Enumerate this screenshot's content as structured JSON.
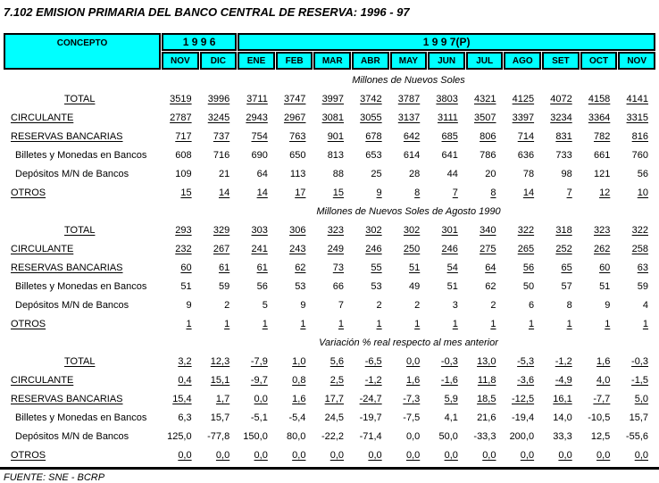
{
  "page": {
    "title": "7.102  EMISION PRIMARIA DEL BANCO CENTRAL DE RESERVA: 1996 - 97",
    "footer": "FUENTE: SNE - BCRP"
  },
  "colors": {
    "header_bg": "#00ffff",
    "border": "#000000",
    "text": "#000000"
  },
  "table": {
    "concept_header": "CONCEPTO",
    "year_groups": [
      {
        "label": "1 9 9 6",
        "span": 2
      },
      {
        "label": "1 9 9 7(P)",
        "span": 11
      }
    ],
    "months": [
      "NOV",
      "DIC",
      "ENE",
      "FEB",
      "MAR",
      "ABR",
      "MAY",
      "JUN",
      "JUL",
      "AGO",
      "SET",
      "OCT",
      "NOV"
    ]
  },
  "sections": [
    {
      "heading": "Millones de Nuevos Soles",
      "rows": [
        {
          "label": "TOTAL",
          "total": true,
          "underline": true,
          "values": [
            "3519",
            "3996",
            "3711",
            "3747",
            "3997",
            "3742",
            "3787",
            "3803",
            "4321",
            "4125",
            "4072",
            "4158",
            "4141"
          ]
        },
        {
          "label": "CIRCULANTE",
          "underline": true,
          "values": [
            "2787",
            "3245",
            "2943",
            "2967",
            "3081",
            "3055",
            "3137",
            "3111",
            "3507",
            "3397",
            "3234",
            "3364",
            "3315"
          ]
        },
        {
          "label": "RESERVAS BANCARIAS",
          "underline": true,
          "values": [
            "717",
            "737",
            "754",
            "763",
            "901",
            "678",
            "642",
            "685",
            "806",
            "714",
            "831",
            "782",
            "816"
          ]
        },
        {
          "label": "Billetes y Monedas en Bancos",
          "indent": true,
          "values": [
            "608",
            "716",
            "690",
            "650",
            "813",
            "653",
            "614",
            "641",
            "786",
            "636",
            "733",
            "661",
            "760"
          ]
        },
        {
          "label": "Depósitos M/N de Bancos",
          "indent": true,
          "values": [
            "109",
            "21",
            "64",
            "113",
            "88",
            "25",
            "28",
            "44",
            "20",
            "78",
            "98",
            "121",
            "56"
          ]
        },
        {
          "label": "OTROS",
          "underline": true,
          "values": [
            "15",
            "14",
            "14",
            "17",
            "15",
            "9",
            "8",
            "7",
            "8",
            "14",
            "7",
            "12",
            "10"
          ]
        }
      ]
    },
    {
      "heading": "Millones de Nuevos Soles de Agosto 1990",
      "rows": [
        {
          "label": "TOTAL",
          "total": true,
          "underline": true,
          "values": [
            "293",
            "329",
            "303",
            "306",
            "323",
            "302",
            "302",
            "301",
            "340",
            "322",
            "318",
            "323",
            "322"
          ]
        },
        {
          "label": "CIRCULANTE",
          "underline": true,
          "values": [
            "232",
            "267",
            "241",
            "243",
            "249",
            "246",
            "250",
            "246",
            "275",
            "265",
            "252",
            "262",
            "258"
          ]
        },
        {
          "label": "RESERVAS BANCARIAS",
          "underline": true,
          "values": [
            "60",
            "61",
            "61",
            "62",
            "73",
            "55",
            "51",
            "54",
            "64",
            "56",
            "65",
            "60",
            "63"
          ]
        },
        {
          "label": "Billetes y Monedas en Bancos",
          "indent": true,
          "values": [
            "51",
            "59",
            "56",
            "53",
            "66",
            "53",
            "49",
            "51",
            "62",
            "50",
            "57",
            "51",
            "59"
          ]
        },
        {
          "label": "Depósitos M/N de Bancos",
          "indent": true,
          "values": [
            "9",
            "2",
            "5",
            "9",
            "7",
            "2",
            "2",
            "3",
            "2",
            "6",
            "8",
            "9",
            "4"
          ]
        },
        {
          "label": "OTROS",
          "underline": true,
          "values": [
            "1",
            "1",
            "1",
            "1",
            "1",
            "1",
            "1",
            "1",
            "1",
            "1",
            "1",
            "1",
            "1"
          ]
        }
      ]
    },
    {
      "heading": "Variación % real respecto al mes anterior",
      "rows": [
        {
          "label": "TOTAL",
          "total": true,
          "underline": true,
          "values": [
            "3,2",
            "12,3",
            "-7,9",
            "1,0",
            "5,6",
            "-6,5",
            "0,0",
            "-0,3",
            "13,0",
            "-5,3",
            "-1,2",
            "1,6",
            "-0,3"
          ]
        },
        {
          "label": "CIRCULANTE",
          "underline": true,
          "values": [
            "0,4",
            "15,1",
            "-9,7",
            "0,8",
            "2,5",
            "-1,2",
            "1,6",
            "-1,6",
            "11,8",
            "-3,6",
            "-4,9",
            "4,0",
            "-1,5"
          ]
        },
        {
          "label": "RESERVAS BANCARIAS",
          "underline": true,
          "values": [
            "15,4",
            "1,7",
            "0,0",
            "1,6",
            "17,7",
            "-24,7",
            "-7,3",
            "5,9",
            "18,5",
            "-12,5",
            "16,1",
            "-7,7",
            "5,0"
          ]
        },
        {
          "label": "Billetes y Monedas en Bancos",
          "indent": true,
          "values": [
            "6,3",
            "15,7",
            "-5,1",
            "-5,4",
            "24,5",
            "-19,7",
            "-7,5",
            "4,1",
            "21,6",
            "-19,4",
            "14,0",
            "-10,5",
            "15,7"
          ]
        },
        {
          "label": "Depósitos M/N de Bancos",
          "indent": true,
          "values": [
            "125,0",
            "-77,8",
            "150,0",
            "80,0",
            "-22,2",
            "-71,4",
            "0,0",
            "50,0",
            "-33,3",
            "200,0",
            "33,3",
            "12,5",
            "-55,6"
          ]
        },
        {
          "label": "OTROS",
          "underline": true,
          "values": [
            "0,0",
            "0,0",
            "0,0",
            "0,0",
            "0,0",
            "0,0",
            "0,0",
            "0,0",
            "0,0",
            "0,0",
            "0,0",
            "0,0",
            "0,0"
          ]
        }
      ]
    }
  ]
}
